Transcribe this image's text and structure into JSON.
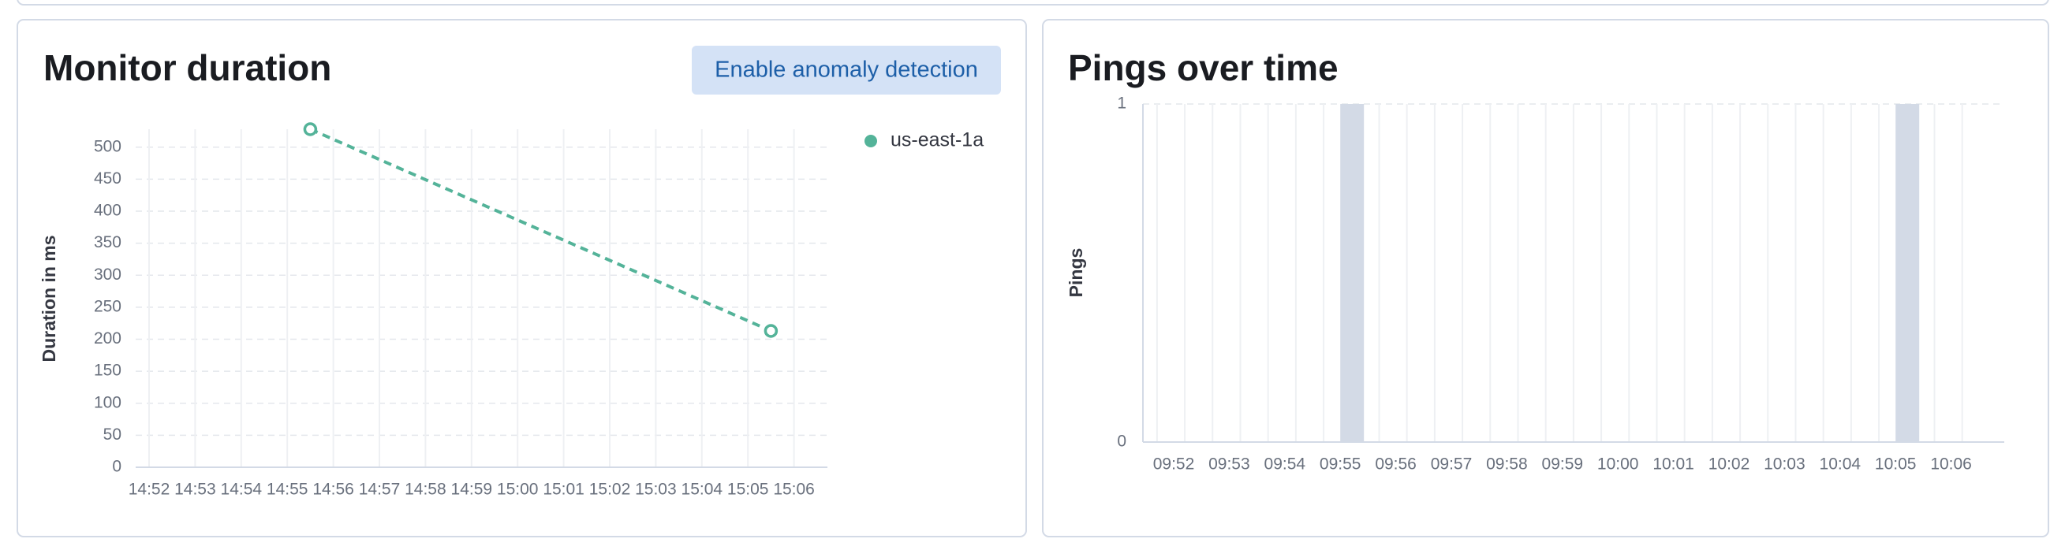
{
  "button": {
    "label": "Enable anomaly detection"
  },
  "chart_data": [
    {
      "type": "line",
      "title": "Monitor duration",
      "y_label": "Duration in ms",
      "categories": [
        "14:52",
        "14:53",
        "14:54",
        "14:55",
        "14:56",
        "14:57",
        "14:58",
        "14:59",
        "15:00",
        "15:01",
        "15:02",
        "15:03",
        "15:04",
        "15:05",
        "15:06"
      ],
      "series": [
        {
          "name": "us-east-1a",
          "color": "#54b399",
          "x": [
            "14:55",
            "15:05"
          ],
          "values": [
            528,
            213
          ]
        }
      ],
      "ylim": [
        0,
        528
      ],
      "yticks": [
        0,
        50,
        100,
        150,
        200,
        250,
        300,
        350,
        400,
        450,
        500
      ],
      "grid": true
    },
    {
      "type": "bar",
      "title": "Pings over time",
      "y_label": "Pings",
      "categories": [
        "09:52",
        "09:53",
        "09:54",
        "09:55",
        "09:56",
        "09:57",
        "09:58",
        "09:59",
        "10:00",
        "10:01",
        "10:02",
        "10:03",
        "10:04",
        "10:05",
        "10:06"
      ],
      "values": [
        0,
        0,
        0,
        1,
        0,
        0,
        0,
        0,
        0,
        0,
        0,
        0,
        0,
        1,
        0
      ],
      "color": "#d3dae6",
      "ylim": [
        0,
        1
      ],
      "yticks": [
        0,
        1
      ],
      "grid": true
    }
  ]
}
